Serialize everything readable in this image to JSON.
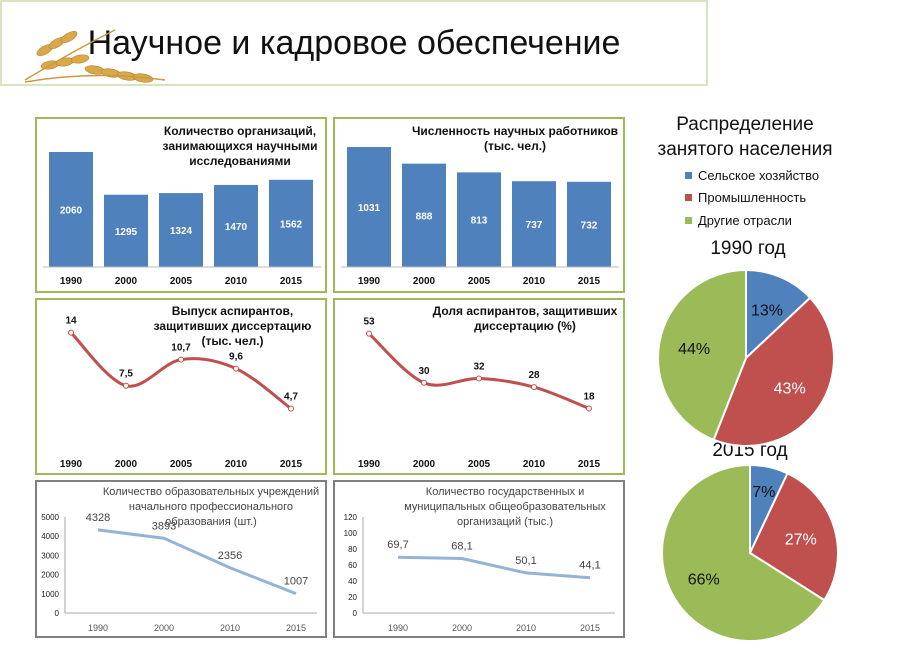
{
  "title": "Научное и кадровое обеспечение",
  "colors": {
    "blue": "#4f81bd",
    "red": "#c0504d",
    "green": "#9bbb59",
    "light_line": "#95b3d7"
  },
  "chart_data": [
    {
      "id": "orgs",
      "type": "bar",
      "title": "Количество организаций, занимающихся научными исследованиями",
      "categories": [
        "1990",
        "2000",
        "2005",
        "2010",
        "2015"
      ],
      "values": [
        2060,
        1295,
        1324,
        1470,
        1562
      ],
      "value_labels": [
        "2060",
        "1295",
        "1324",
        "1470",
        "1562"
      ]
    },
    {
      "id": "researchers",
      "type": "bar",
      "title": "Численность научных работников (тыс. чел.)",
      "categories": [
        "1990",
        "2000",
        "2005",
        "2010",
        "2015"
      ],
      "values": [
        1031,
        888,
        813,
        737,
        732
      ],
      "value_labels": [
        "1031",
        "888",
        "813",
        "737",
        "732"
      ]
    },
    {
      "id": "grads",
      "type": "line",
      "title": "Выпуск аспирантов, защитивших диссертацию (тыс. чел.)",
      "categories": [
        "1990",
        "2000",
        "2005",
        "2010",
        "2015"
      ],
      "values": [
        14,
        7.5,
        10.7,
        9.6,
        4.7
      ],
      "value_labels": [
        "14",
        "7,5",
        "10,7",
        "9,6",
        "4,7"
      ]
    },
    {
      "id": "share",
      "type": "line",
      "title": "Доля аспирантов, защитивших диссертацию (%)",
      "categories": [
        "1990",
        "2000",
        "2005",
        "2010",
        "2015"
      ],
      "values": [
        53,
        30,
        32,
        28,
        18
      ],
      "value_labels": [
        "53",
        "30",
        "32",
        "28",
        "18"
      ]
    },
    {
      "id": "vocational",
      "type": "line",
      "title": "Количество образовательных учреждений начального профессионального образования (шт.)",
      "categories": [
        "1990",
        "2000",
        "2010",
        "2015"
      ],
      "values": [
        4328,
        3893,
        2356,
        1007
      ],
      "value_labels": [
        "4328",
        "3893",
        "2356",
        "1007"
      ],
      "ylim": [
        0,
        5000
      ],
      "yticks": [
        "0",
        "1000",
        "2000",
        "3000",
        "4000",
        "5000"
      ]
    },
    {
      "id": "schools",
      "type": "line",
      "title": "Количество государственных и муниципальных общеобразовательных организаций (тыс.)",
      "categories": [
        "1990",
        "2000",
        "2010",
        "2015"
      ],
      "values": [
        69.7,
        68.1,
        50.1,
        44.1
      ],
      "value_labels": [
        "69,7",
        "68,1",
        "50,1",
        "44,1"
      ],
      "ylim": [
        0,
        120
      ],
      "yticks": [
        "0",
        "20",
        "40",
        "60",
        "80",
        "100",
        "120"
      ]
    },
    {
      "id": "pie1990",
      "type": "pie",
      "title": "1990 год",
      "labels": [
        "Сельское хозяйство",
        "Промышленность",
        "Другие отрасли"
      ],
      "values": [
        13,
        43,
        44
      ],
      "value_labels": [
        "13%",
        "43%",
        "44%"
      ]
    },
    {
      "id": "pie2015",
      "type": "pie",
      "title": "2015 год",
      "labels": [
        "Сельское хозяйство",
        "Промышленность",
        "Другие отрасли"
      ],
      "values": [
        7,
        27,
        66
      ],
      "value_labels": [
        "7%",
        "27%",
        "66%"
      ]
    }
  ],
  "pie_section": {
    "title": "Распределение занятого населения",
    "legend": [
      "Сельское хозяйство",
      "Промышленность",
      "Другие отрасли"
    ]
  }
}
